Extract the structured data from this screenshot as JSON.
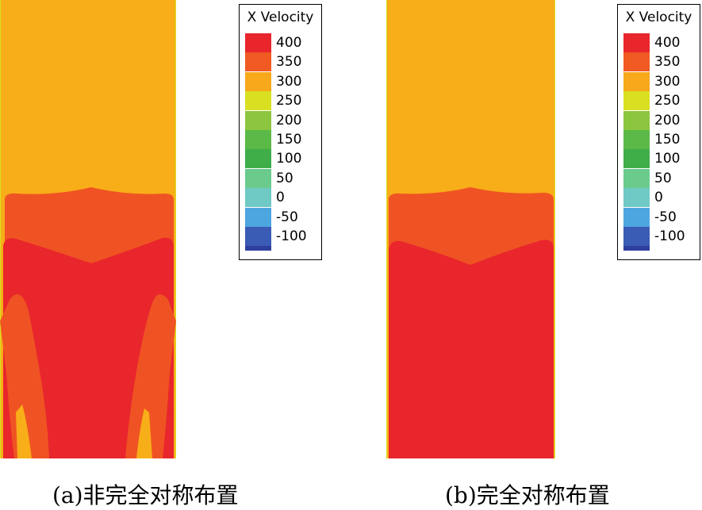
{
  "legend": {
    "title": "X Velocity",
    "levels": [
      "400",
      "350",
      "300",
      "250",
      "200",
      "150",
      "100",
      "50",
      "0",
      "-50",
      "-100"
    ],
    "colors": [
      "#e8262c",
      "#f15a22",
      "#f7a81b",
      "#d9e021",
      "#8cc63f",
      "#5bb947",
      "#3fae49",
      "#6acb8c",
      "#6fc9c4",
      "#4da6e0",
      "#3b5cb5"
    ],
    "bottom_color": "#2f3f9e"
  },
  "field_colors": {
    "upstream": "#f7ae18",
    "transition": "#f05323",
    "core": "#e8262c",
    "edge": "#d9e021"
  },
  "captions": {
    "a": "(a)非完全对称布置",
    "b": "(b)完全对称布置"
  }
}
